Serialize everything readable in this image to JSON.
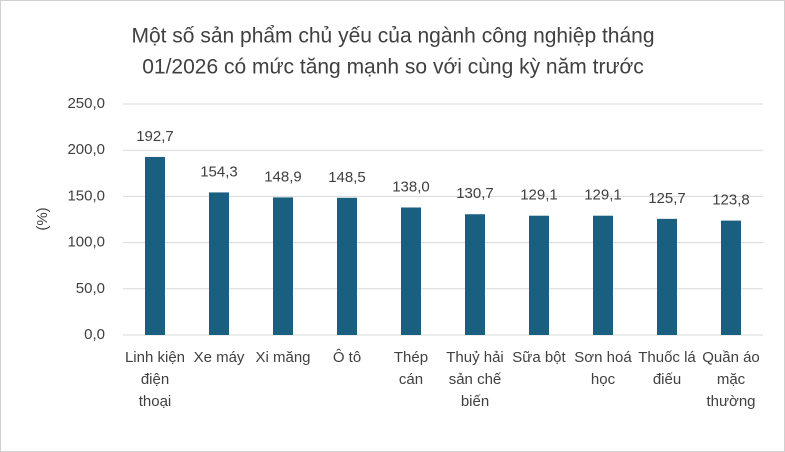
{
  "chart_data": {
    "type": "bar",
    "title": [
      "Một số sản phẩm chủ yếu của ngành công nghiệp tháng",
      "01/2026 có mức tăng mạnh so với cùng kỳ năm trước"
    ],
    "y_label": "(%)",
    "categories": [
      "Linh kiện điện thoại",
      "Xe máy",
      "Xi măng",
      "Ô tô",
      "Thép cán",
      "Thuỷ hải sản chế biến",
      "Sữa bột",
      "Sơn hoá học",
      "Thuốc lá điếu",
      "Quần áo mặc thường"
    ],
    "values": [
      192.7,
      154.3,
      148.9,
      148.5,
      138.0,
      130.7,
      129.1,
      129.1,
      125.7,
      123.8
    ],
    "value_labels": [
      "192,7",
      "154,3",
      "148,9",
      "148,5",
      "138,0",
      "130,7",
      "129,1",
      "129,1",
      "125,7",
      "123,8"
    ],
    "color": "#1a5e80",
    "ylim": [
      0,
      250
    ],
    "yticks": [
      {
        "value": 0,
        "label": "0,0"
      },
      {
        "value": 50,
        "label": "50,0"
      },
      {
        "value": 100,
        "label": "100,0"
      },
      {
        "value": 150,
        "label": "150,0"
      },
      {
        "value": 200,
        "label": "200,0"
      },
      {
        "value": 250,
        "label": "250,0"
      }
    ],
    "grid": true
  }
}
